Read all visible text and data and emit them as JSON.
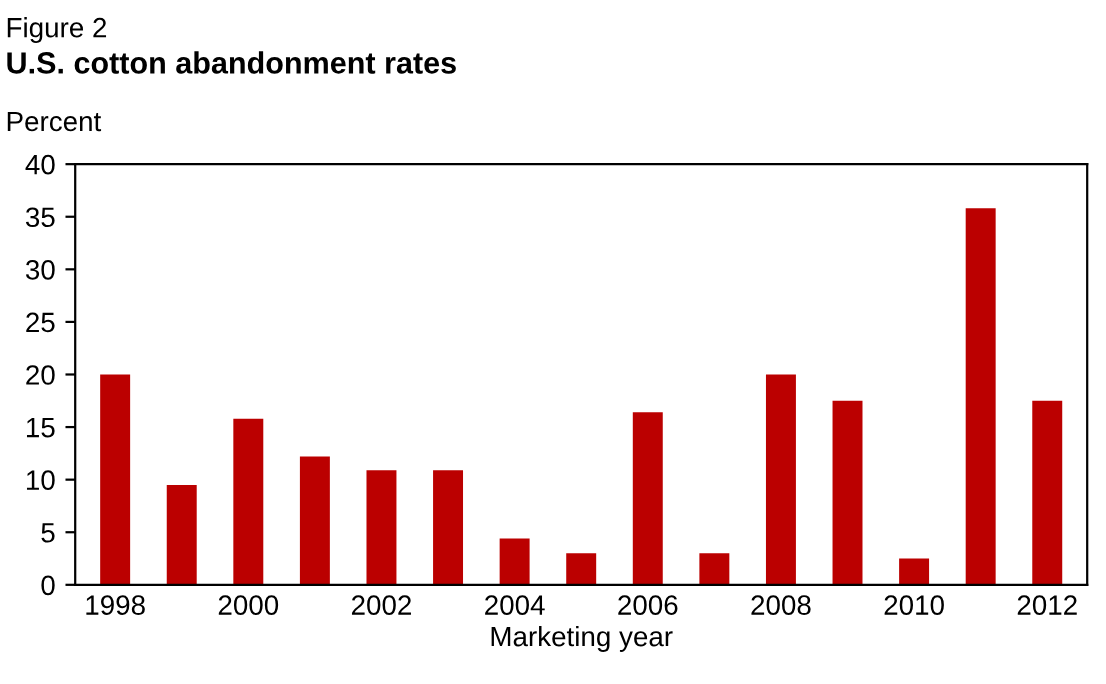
{
  "chart_data": {
    "type": "bar",
    "title": "Figure 2",
    "subtitle": "U.S. cotton abandonment rates",
    "ylabel": "Percent",
    "xlabel": "Marketing year",
    "categories": [
      "1998",
      null,
      "2000",
      null,
      "2002",
      null,
      "2004",
      null,
      "2006",
      null,
      "2008",
      null,
      "2010",
      null,
      "2012"
    ],
    "values": [
      20,
      9.5,
      15.8,
      12.2,
      10.9,
      10.9,
      4.4,
      3,
      16.4,
      3,
      20,
      17.5,
      2.5,
      35.8,
      17.5
    ],
    "color": "#bb0000",
    "ylim": [
      0,
      40
    ],
    "yticks": [
      0,
      5,
      10,
      15,
      20,
      25,
      30,
      35,
      40
    ],
    "grid": false
  }
}
